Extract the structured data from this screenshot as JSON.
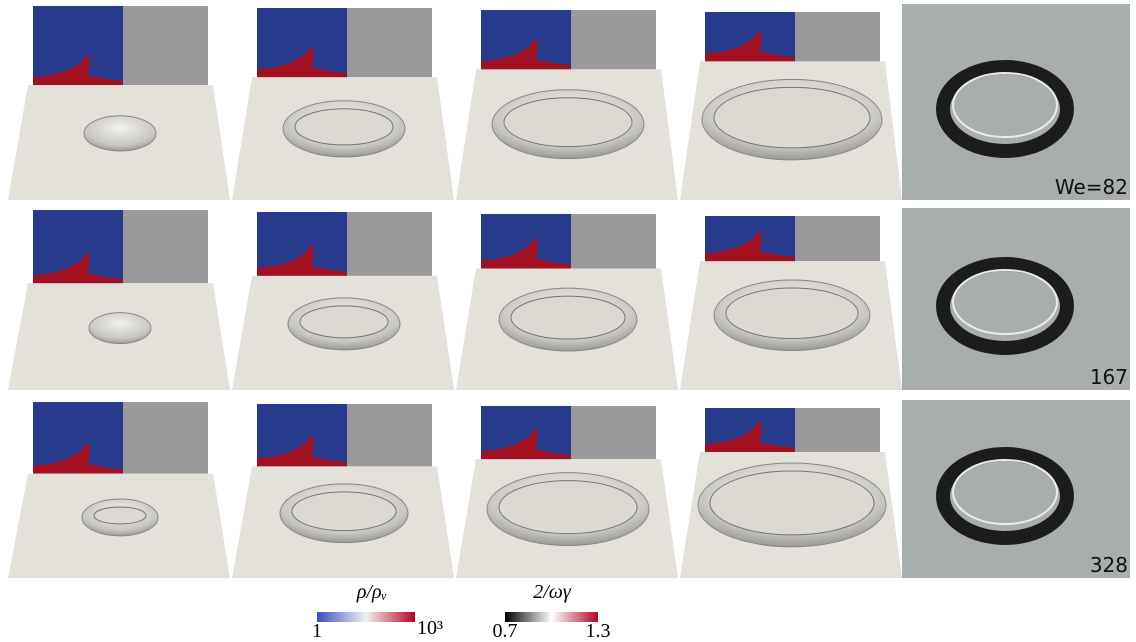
{
  "photo_labels": [
    "We=82",
    "167",
    "328"
  ],
  "colorbars": [
    {
      "title": "ρ/ρᵥ",
      "min_label": "1",
      "max_label": "10³"
    },
    {
      "title": "2/ωγ",
      "min_label": "0.7",
      "max_label": "1.3"
    }
  ]
}
